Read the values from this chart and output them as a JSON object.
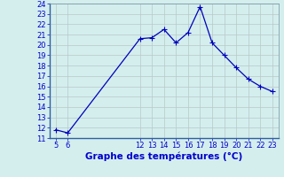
{
  "x": [
    5,
    6,
    12,
    13,
    14,
    15,
    16,
    17,
    18,
    19,
    20,
    21,
    22,
    23
  ],
  "y": [
    11.8,
    11.5,
    20.6,
    20.7,
    21.5,
    20.2,
    21.2,
    23.7,
    20.2,
    19.0,
    17.8,
    16.7,
    16.0,
    15.5
  ],
  "line_color": "#0000bb",
  "bg_color": "#d4eeee",
  "grid_color_major": "#b8c8c8",
  "xlabel": "Graphe des températures (°C)",
  "xlabel_color": "#0000cc",
  "xlabel_fontsize": 7.5,
  "tick_color": "#0000cc",
  "tick_fontsize": 6,
  "ylim": [
    11,
    24
  ],
  "yticks": [
    11,
    12,
    13,
    14,
    15,
    16,
    17,
    18,
    19,
    20,
    21,
    22,
    23,
    24
  ],
  "xticks": [
    5,
    6,
    12,
    13,
    14,
    15,
    16,
    17,
    18,
    19,
    20,
    21,
    22,
    23
  ],
  "xlim": [
    4.5,
    23.5
  ],
  "marker_size": 2.0,
  "line_width": 0.9
}
